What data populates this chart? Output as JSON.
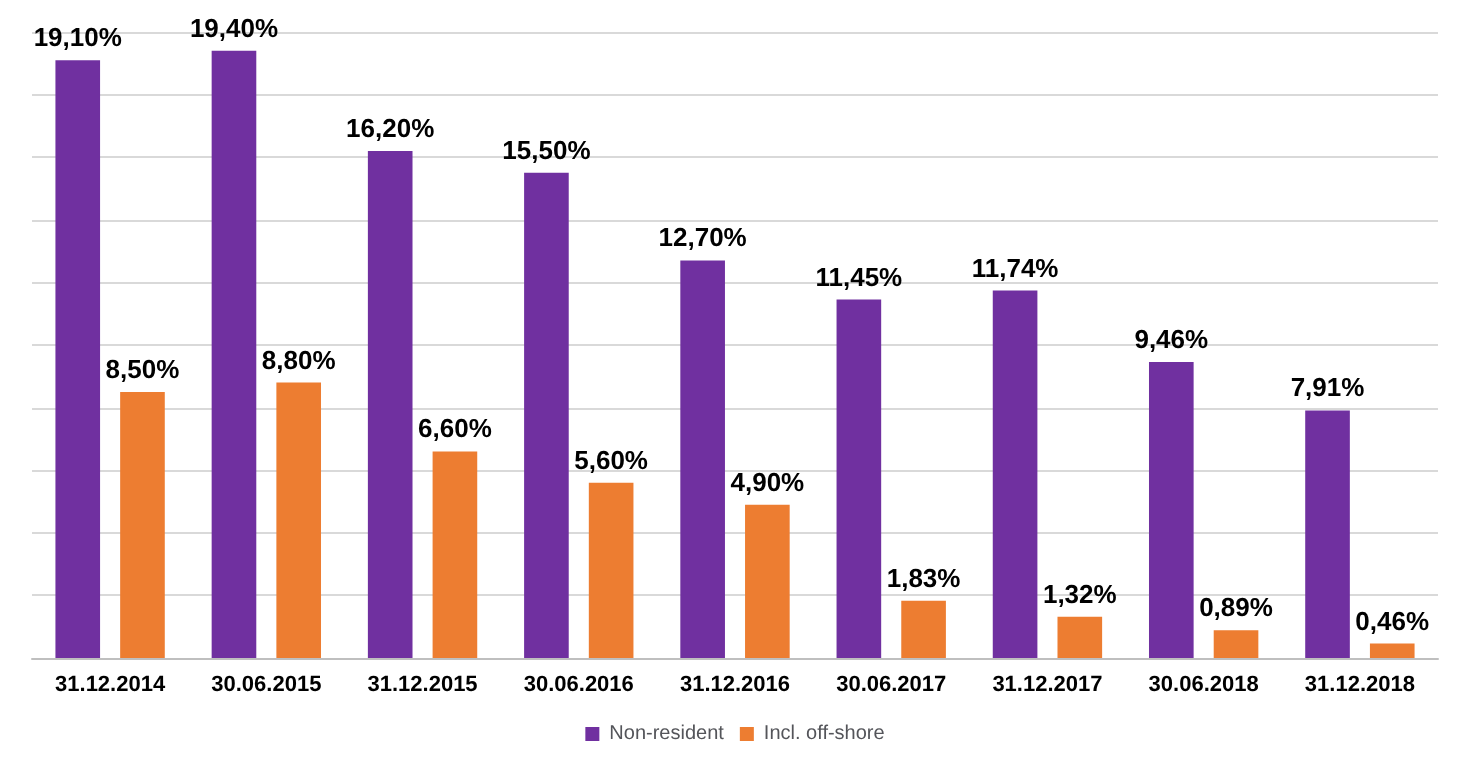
{
  "chart_data": {
    "type": "bar",
    "categories": [
      "31.12.2014",
      "30.06.2015",
      "31.12.2015",
      "30.06.2016",
      "31.12.2016",
      "30.06.2017",
      "31.12.2017",
      "30.06.2018",
      "31.12.2018"
    ],
    "series": [
      {
        "name": "Non-resident",
        "color": "#7030a0",
        "values": [
          19.1,
          19.4,
          16.2,
          15.5,
          12.7,
          11.45,
          11.74,
          9.46,
          7.91
        ],
        "value_labels": [
          "19,10%",
          "19,40%",
          "16,20%",
          "15,50%",
          "12,70%",
          "11,45%",
          "11,74%",
          "9,46%",
          "7,91%"
        ]
      },
      {
        "name": "Incl. off-shore",
        "color": "#ed7d31",
        "values": [
          8.5,
          8.8,
          6.6,
          5.6,
          4.9,
          1.83,
          1.32,
          0.89,
          0.46
        ],
        "value_labels": [
          "8,50%",
          "8,80%",
          "6,60%",
          "5,60%",
          "4,90%",
          "1,83%",
          "1,32%",
          "0,89%",
          "0,46%"
        ]
      }
    ],
    "ylim": [
      0,
      20
    ],
    "yticks": [
      {
        "value": 0,
        "label": null
      },
      {
        "value": 2,
        "label": null
      },
      {
        "value": 4,
        "label": null
      },
      {
        "value": 6,
        "label": null
      },
      {
        "value": 8,
        "label": null
      },
      {
        "value": 10,
        "label": null
      },
      {
        "value": 12,
        "label": null
      },
      {
        "value": 14,
        "label": null
      },
      {
        "value": 16,
        "label": null
      },
      {
        "value": 18,
        "label": null
      },
      {
        "value": 20,
        "label": null
      }
    ],
    "grid": "y",
    "legend": "bottom",
    "tick_labels": "x"
  }
}
